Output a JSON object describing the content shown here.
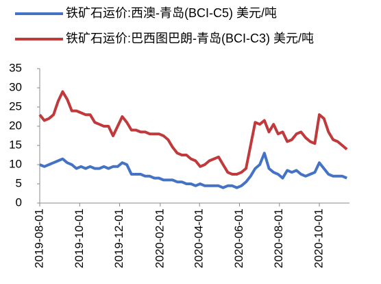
{
  "chart_data": {
    "type": "line",
    "x": [
      "2019-08-01",
      "2019-08-08",
      "2019-08-15",
      "2019-08-22",
      "2019-08-29",
      "2019-09-05",
      "2019-09-12",
      "2019-09-19",
      "2019-09-26",
      "2019-10-03",
      "2019-10-10",
      "2019-10-17",
      "2019-10-24",
      "2019-10-31",
      "2019-11-07",
      "2019-11-14",
      "2019-11-21",
      "2019-11-28",
      "2019-12-05",
      "2019-12-12",
      "2019-12-19",
      "2019-12-26",
      "2020-01-02",
      "2020-01-09",
      "2020-01-16",
      "2020-01-23",
      "2020-01-30",
      "2020-02-06",
      "2020-02-13",
      "2020-02-20",
      "2020-02-27",
      "2020-03-05",
      "2020-03-12",
      "2020-03-19",
      "2020-03-26",
      "2020-04-02",
      "2020-04-09",
      "2020-04-16",
      "2020-04-23",
      "2020-04-30",
      "2020-05-07",
      "2020-05-14",
      "2020-05-21",
      "2020-05-28",
      "2020-06-04",
      "2020-06-11",
      "2020-06-18",
      "2020-06-25",
      "2020-07-02",
      "2020-07-09",
      "2020-07-16",
      "2020-07-23",
      "2020-07-30",
      "2020-08-06",
      "2020-08-13",
      "2020-08-20",
      "2020-08-27",
      "2020-09-03",
      "2020-09-10",
      "2020-09-17",
      "2020-09-24",
      "2020-10-01",
      "2020-10-08",
      "2020-10-15",
      "2020-10-22",
      "2020-10-29",
      "2020-11-05",
      "2020-11-12"
    ],
    "series": [
      {
        "name": "铁矿石运价:西澳-青岛(BCI-C5) 美元/吨",
        "color": "#4472c4",
        "values": [
          10,
          9.5,
          10,
          10.5,
          11,
          11.5,
          10.5,
          10,
          9,
          9.5,
          9,
          9.5,
          9,
          9,
          9.5,
          9,
          9.5,
          9.5,
          10.5,
          10,
          7.5,
          7.5,
          7.5,
          7,
          7,
          6.5,
          6.5,
          6,
          6,
          6,
          5.5,
          5.5,
          5,
          5,
          4.5,
          5,
          4.5,
          4.5,
          4.5,
          4.5,
          4,
          4.5,
          4.5,
          4,
          4.5,
          5.5,
          7,
          9,
          10,
          13,
          9,
          8,
          7.5,
          6.5,
          8.5,
          8,
          8.5,
          7.5,
          7,
          7.5,
          8,
          10.5,
          9,
          7.5,
          7,
          7,
          7,
          6.5
        ]
      },
      {
        "name": "铁矿石运价:巴西图巴朗-青岛(BCI-C3) 美元/吨",
        "color": "#c0393b",
        "values": [
          23,
          21.5,
          22,
          23,
          26.5,
          29,
          27,
          24,
          24,
          23.5,
          23,
          23,
          21,
          20.5,
          20,
          20,
          17.5,
          20,
          22.5,
          21,
          19,
          19,
          18.5,
          18.5,
          18,
          18,
          18,
          17.5,
          16.5,
          14.5,
          13,
          12.5,
          12.5,
          11.5,
          11,
          9.5,
          10,
          11,
          11.5,
          12,
          10,
          8,
          7.5,
          7.5,
          8,
          9,
          15,
          21,
          20.5,
          21.5,
          18.5,
          20.5,
          18,
          18.5,
          16,
          16.5,
          18,
          18.5,
          17,
          16,
          15.5,
          23,
          22,
          18.5,
          16.5,
          16,
          15,
          14
        ]
      }
    ],
    "xlim": [
      "2019-08-01",
      "2020-11-16"
    ],
    "xticks": [
      "2019-08-01",
      "2019-10-01",
      "2019-12-01",
      "2020-02-01",
      "2020-04-01",
      "2020-06-01",
      "2020-08-01",
      "2020-10-01"
    ],
    "ylim": [
      0,
      35
    ],
    "yticks": [
      0,
      5,
      10,
      15,
      20,
      25,
      30,
      35
    ],
    "grid": false
  }
}
